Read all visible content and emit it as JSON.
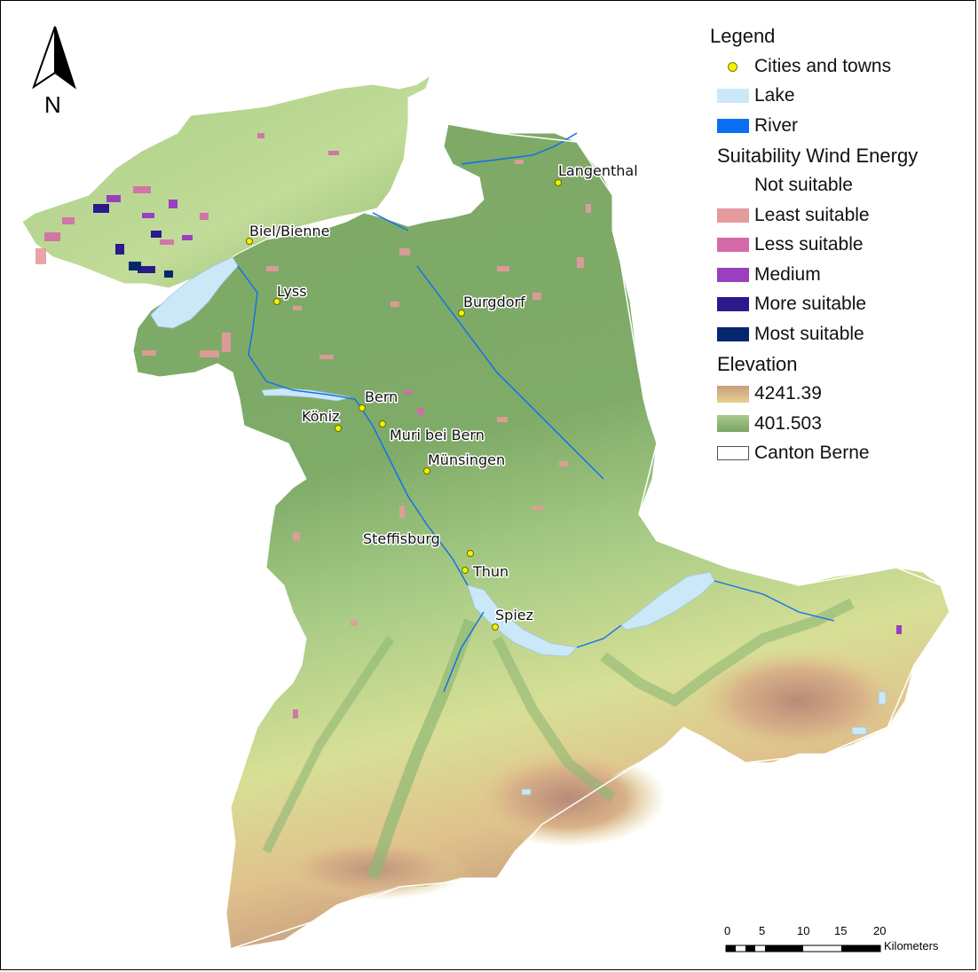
{
  "legend": {
    "title": "Legend",
    "items": [
      {
        "label": "Cities and towns",
        "symbol": "point",
        "color": "#f5f200"
      },
      {
        "label": "Lake",
        "symbol": "fill",
        "color": "#cbe8f8"
      },
      {
        "label": "River",
        "symbol": "fill",
        "color": "#0a6ff2"
      }
    ],
    "suitability": {
      "title": "Suitability Wind Energy",
      "classes": [
        {
          "label": "Not suitable",
          "color": "#ffffff"
        },
        {
          "label": "Least suitable",
          "color": "#e59a9c"
        },
        {
          "label": "Less suitable",
          "color": "#d46ba8"
        },
        {
          "label": "Medium",
          "color": "#9a3fbf"
        },
        {
          "label": "More suitable",
          "color": "#2a1a8c"
        },
        {
          "label": "Most suitable",
          "color": "#06276e"
        }
      ]
    },
    "elevation": {
      "title": "Elevation",
      "high": "4241.39",
      "low": "401.503",
      "high_color": "#c99e7e",
      "low_color": "#7aa466"
    },
    "boundary": {
      "label": "Canton Berne",
      "color": "#ffffff"
    }
  },
  "north_arrow": {
    "label": "N"
  },
  "cities": [
    {
      "name": "Langenthal"
    },
    {
      "name": "Biel/Bienne"
    },
    {
      "name": "Lyss"
    },
    {
      "name": "Burgdorf"
    },
    {
      "name": "Bern"
    },
    {
      "name": "Köniz"
    },
    {
      "name": "Muri bei Bern"
    },
    {
      "name": "Münsingen"
    },
    {
      "name": "Steffisburg"
    },
    {
      "name": "Thun"
    },
    {
      "name": "Spiez"
    }
  ],
  "scale_bar": {
    "ticks": [
      "0",
      "5",
      "10",
      "15",
      "20"
    ],
    "unit": "Kilometers"
  }
}
